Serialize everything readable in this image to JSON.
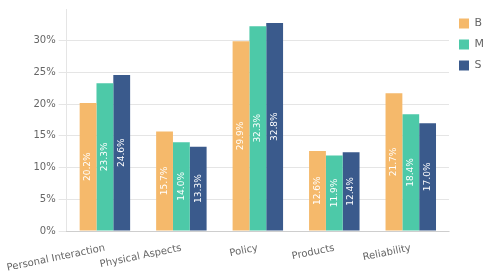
{
  "chart_data": {
    "type": "bar",
    "categories": [
      "Personal Interaction",
      "Physical Aspects",
      "Policy",
      "Products",
      "Reliability"
    ],
    "series": [
      {
        "name": "B",
        "color": "#F5B96B",
        "values": [
          20.2,
          15.7,
          29.9,
          12.6,
          21.7
        ],
        "value_labels": [
          "20.2%",
          "15.7%",
          "29.9%",
          "12.6%",
          "21.7%"
        ]
      },
      {
        "name": "M",
        "color": "#4DC9A8",
        "values": [
          23.3,
          14.0,
          32.3,
          11.9,
          18.4
        ],
        "value_labels": [
          "23.3%",
          "14.0%",
          "32.3%",
          "11.9%",
          "18.4%"
        ]
      },
      {
        "name": "S",
        "color": "#3A5A8C",
        "values": [
          24.6,
          13.3,
          32.8,
          12.4,
          17.0
        ],
        "value_labels": [
          "24.6%",
          "13.3%",
          "32.8%",
          "12.4%",
          "17.0%"
        ]
      }
    ],
    "ylim": [
      0,
      35
    ],
    "yticks": [
      {
        "value": 0,
        "label": "0%"
      },
      {
        "value": 5,
        "label": "5%"
      },
      {
        "value": 10,
        "label": "10%"
      },
      {
        "value": 15,
        "label": "15%"
      },
      {
        "value": 20,
        "label": "20%"
      },
      {
        "value": 25,
        "label": "25%"
      },
      {
        "value": 30,
        "label": "30%"
      }
    ],
    "grid": true,
    "legend": "upper right",
    "data_labels": true
  }
}
